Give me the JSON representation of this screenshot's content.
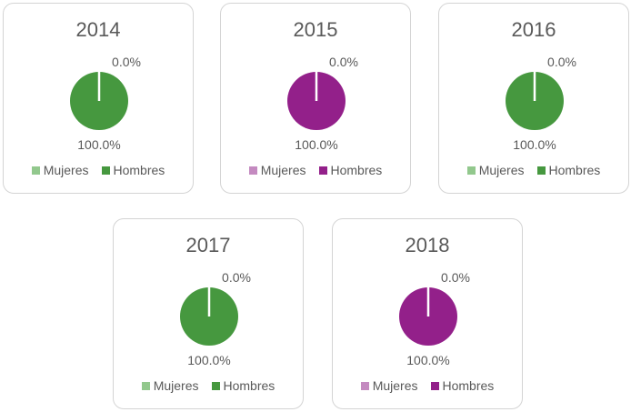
{
  "chart_data": [
    {
      "type": "pie",
      "title": "2014",
      "categories": [
        "Mujeres",
        "Hombres"
      ],
      "values": [
        0.0,
        100.0
      ],
      "data_labels": [
        "0.0%",
        "100.0%"
      ],
      "colors": [
        "#92c88d",
        "#46983f"
      ],
      "legend": "bottom"
    },
    {
      "type": "pie",
      "title": "2015",
      "categories": [
        "Mujeres",
        "Hombres"
      ],
      "values": [
        0.0,
        100.0
      ],
      "data_labels": [
        "0.0%",
        "100.0%"
      ],
      "colors": [
        "#c48ac0",
        "#93208a"
      ],
      "legend": "bottom"
    },
    {
      "type": "pie",
      "title": "2016",
      "categories": [
        "Mujeres",
        "Hombres"
      ],
      "values": [
        0.0,
        100.0
      ],
      "data_labels": [
        "0.0%",
        "100.0%"
      ],
      "colors": [
        "#92c88d",
        "#46983f"
      ],
      "legend": "bottom"
    },
    {
      "type": "pie",
      "title": "2017",
      "categories": [
        "Mujeres",
        "Hombres"
      ],
      "values": [
        0.0,
        100.0
      ],
      "data_labels": [
        "0.0%",
        "100.0%"
      ],
      "colors": [
        "#92c88d",
        "#46983f"
      ],
      "legend": "bottom"
    },
    {
      "type": "pie",
      "title": "2018",
      "categories": [
        "Mujeres",
        "Hombres"
      ],
      "values": [
        0.0,
        100.0
      ],
      "data_labels": [
        "0.0%",
        "100.0%"
      ],
      "colors": [
        "#c48ac0",
        "#93208a"
      ],
      "legend": "bottom"
    }
  ]
}
